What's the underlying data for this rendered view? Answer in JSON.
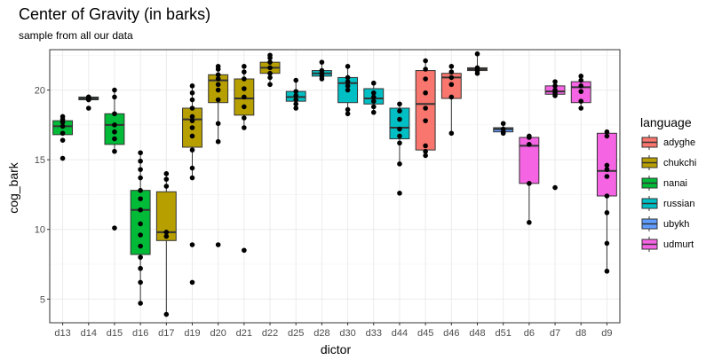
{
  "chart_data": {
    "type": "box",
    "title": "Center of Gravity (in barks)",
    "subtitle": "sample from all our data",
    "xlabel": "dictor",
    "ylabel": "cog_bark",
    "ylim": [
      3.3,
      22.9
    ],
    "yticks": [
      5,
      10,
      15,
      20
    ],
    "grid": true,
    "legend": {
      "title": "language",
      "placement": "right",
      "entries": [
        {
          "name": "adyghe",
          "color": "#F8766D"
        },
        {
          "name": "chukchi",
          "color": "#B79F00"
        },
        {
          "name": "nanai",
          "color": "#00BA38"
        },
        {
          "name": "russian",
          "color": "#00BFC4"
        },
        {
          "name": "ubykh",
          "color": "#619CFF"
        },
        {
          "name": "udmurt",
          "color": "#F564E3"
        }
      ]
    },
    "categories": [
      "d13",
      "d14",
      "d15",
      "d16",
      "d17",
      "d19",
      "d20",
      "d21",
      "d22",
      "d25",
      "d28",
      "d30",
      "d33",
      "d44",
      "d45",
      "d46",
      "d48",
      "d51",
      "d6",
      "d7",
      "d8",
      "d9"
    ],
    "boxes": [
      {
        "dictor": "d13",
        "language": "nanai",
        "min": 16.8,
        "q1": 16.8,
        "median": 17.4,
        "q3": 17.8,
        "max": 18.1,
        "points": [
          15.1,
          16.4,
          16.9,
          17.4,
          17.7,
          17.9,
          18.1
        ]
      },
      {
        "dictor": "d14",
        "language": "nanai",
        "min": 19.2,
        "q1": 19.3,
        "median": 19.4,
        "q3": 19.5,
        "max": 19.5,
        "points": [
          18.7,
          19.3,
          19.4,
          19.5,
          19.5
        ]
      },
      {
        "dictor": "d15",
        "language": "nanai",
        "min": 15.6,
        "q1": 16.1,
        "median": 17.5,
        "q3": 18.3,
        "max": 20.0,
        "points": [
          10.1,
          15.6,
          16.5,
          17.0,
          17.5,
          18.3,
          19.5,
          20.0
        ]
      },
      {
        "dictor": "d16",
        "language": "nanai",
        "min": 4.7,
        "q1": 8.2,
        "median": 11.4,
        "q3": 12.8,
        "max": 15.5,
        "points": [
          4.7,
          6.2,
          7.2,
          8.0,
          8.8,
          9.6,
          10.4,
          11.4,
          12.2,
          12.8,
          13.7,
          14.3,
          14.9,
          15.5
        ]
      },
      {
        "dictor": "d17",
        "language": "chukchi",
        "min": 3.9,
        "q1": 9.2,
        "median": 9.8,
        "q3": 12.7,
        "max": 14.0,
        "points": [
          3.9,
          9.5,
          9.8,
          13.1,
          13.6,
          14.0
        ]
      },
      {
        "dictor": "d19",
        "language": "chukchi",
        "min": 13.7,
        "q1": 15.9,
        "median": 17.9,
        "q3": 18.7,
        "max": 20.3,
        "points": [
          6.2,
          8.9,
          13.7,
          14.4,
          15.7,
          16.7,
          17.3,
          17.8,
          18.1,
          18.7,
          19.3,
          19.8,
          20.3
        ]
      },
      {
        "dictor": "d20",
        "language": "chukchi",
        "min": 16.3,
        "q1": 19.1,
        "median": 20.7,
        "q3": 21.1,
        "max": 21.7,
        "points": [
          8.9,
          16.3,
          17.6,
          19.3,
          20.0,
          20.4,
          20.8,
          21.1,
          21.5,
          21.7
        ]
      },
      {
        "dictor": "d21",
        "language": "chukchi",
        "min": 17.3,
        "q1": 18.2,
        "median": 19.4,
        "q3": 20.8,
        "max": 21.7,
        "points": [
          8.5,
          17.3,
          18.0,
          18.8,
          19.5,
          20.1,
          20.8,
          21.3,
          21.7
        ]
      },
      {
        "dictor": "d22",
        "language": "chukchi",
        "min": 20.4,
        "q1": 21.2,
        "median": 21.6,
        "q3": 22.0,
        "max": 22.5,
        "points": [
          20.4,
          20.9,
          21.2,
          21.6,
          22.0,
          22.3,
          22.5
        ]
      },
      {
        "dictor": "d25",
        "language": "russian",
        "min": 18.7,
        "q1": 19.2,
        "median": 19.5,
        "q3": 19.9,
        "max": 20.7,
        "points": [
          18.7,
          19.0,
          19.3,
          19.6,
          19.9,
          20.7
        ]
      },
      {
        "dictor": "d28",
        "language": "russian",
        "min": 20.8,
        "q1": 21.0,
        "median": 21.2,
        "q3": 21.4,
        "max": 22.0,
        "points": [
          20.8,
          21.0,
          21.2,
          21.4,
          22.0
        ]
      },
      {
        "dictor": "d30",
        "language": "russian",
        "min": 18.3,
        "q1": 19.1,
        "median": 20.5,
        "q3": 20.9,
        "max": 21.7,
        "points": [
          18.3,
          18.6,
          20.0,
          20.3,
          20.6,
          20.9,
          21.7
        ]
      },
      {
        "dictor": "d33",
        "language": "russian",
        "min": 18.4,
        "q1": 19.0,
        "median": 19.4,
        "q3": 20.1,
        "max": 20.5,
        "points": [
          18.4,
          18.8,
          19.2,
          19.5,
          19.8,
          20.5
        ]
      },
      {
        "dictor": "d44",
        "language": "russian",
        "min": 14.7,
        "q1": 16.5,
        "median": 17.3,
        "q3": 18.7,
        "max": 19.0,
        "points": [
          12.6,
          14.7,
          16.2,
          16.7,
          17.2,
          17.9,
          18.5,
          19.0
        ]
      },
      {
        "dictor": "d45",
        "language": "adyghe",
        "min": 15.3,
        "q1": 15.7,
        "median": 19.0,
        "q3": 21.4,
        "max": 22.1,
        "points": [
          15.3,
          15.6,
          16.0,
          17.8,
          18.7,
          19.8,
          20.8,
          21.5,
          22.1
        ]
      },
      {
        "dictor": "d46",
        "language": "adyghe",
        "min": 16.9,
        "q1": 19.4,
        "median": 20.9,
        "q3": 21.2,
        "max": 21.7,
        "points": [
          16.9,
          19.5,
          20.4,
          20.9,
          21.3,
          21.7
        ]
      },
      {
        "dictor": "d48",
        "language": "adyghe",
        "min": 21.2,
        "q1": 21.4,
        "median": 21.5,
        "q3": 21.6,
        "max": 22.6,
        "points": [
          21.2,
          21.4,
          21.6,
          22.6
        ]
      },
      {
        "dictor": "d51",
        "language": "ubykh",
        "min": 16.9,
        "q1": 17.0,
        "median": 17.2,
        "q3": 17.3,
        "max": 17.6,
        "points": [
          16.9,
          17.0,
          17.2,
          17.6
        ]
      },
      {
        "dictor": "d6",
        "language": "udmurt",
        "min": 10.5,
        "q1": 13.3,
        "median": 16.0,
        "q3": 16.6,
        "max": 16.7,
        "points": [
          10.5,
          13.3,
          16.1,
          16.6,
          16.7
        ]
      },
      {
        "dictor": "d7",
        "language": "udmurt",
        "min": 19.6,
        "q1": 19.7,
        "median": 19.9,
        "q3": 20.3,
        "max": 20.6,
        "points": [
          13.0,
          19.6,
          19.8,
          20.0,
          20.3,
          20.6
        ]
      },
      {
        "dictor": "d8",
        "language": "udmurt",
        "min": 18.7,
        "q1": 19.1,
        "median": 20.2,
        "q3": 20.6,
        "max": 21.0,
        "points": [
          18.7,
          19.2,
          19.9,
          20.3,
          20.7,
          21.0
        ]
      },
      {
        "dictor": "d9",
        "language": "udmurt",
        "min": 7.0,
        "q1": 12.4,
        "median": 14.2,
        "q3": 16.9,
        "max": 17.0,
        "points": [
          7.0,
          9.0,
          11.2,
          12.4,
          13.8,
          14.3,
          14.6,
          16.7,
          17.0
        ]
      }
    ]
  }
}
